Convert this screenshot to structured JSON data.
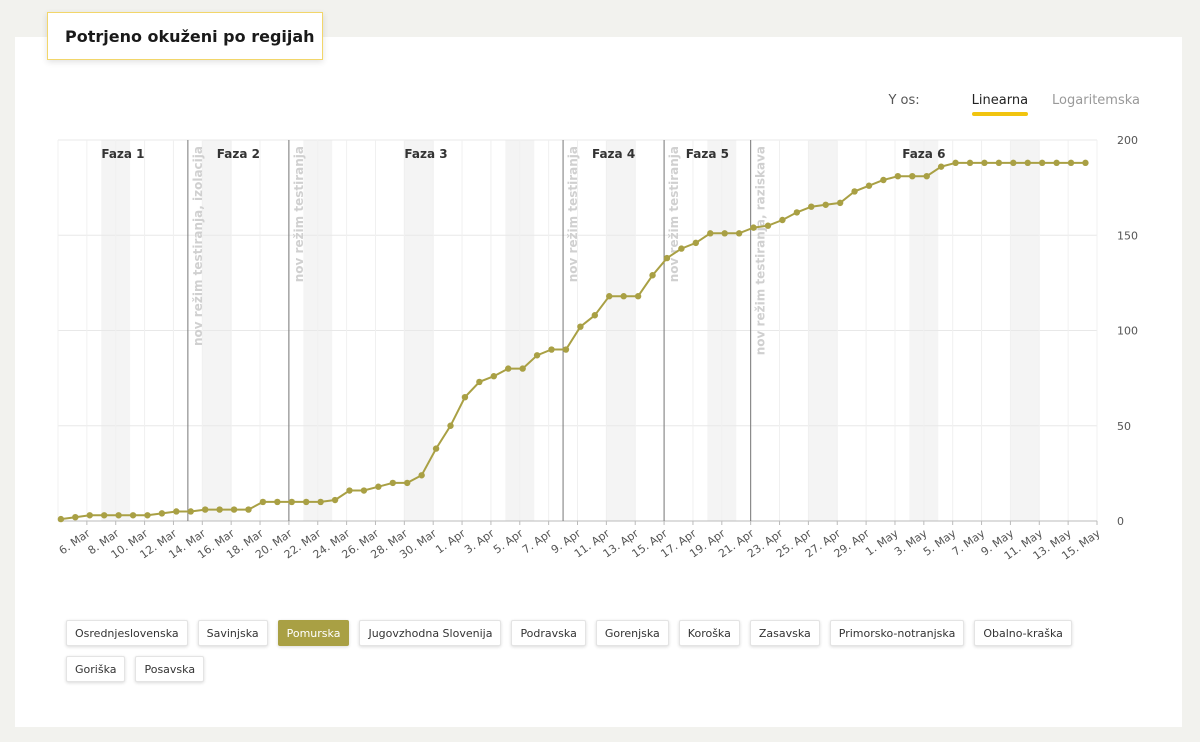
{
  "title": "Potrjeno okuženi po regijah",
  "y_axis_toggle": {
    "label": "Y os:",
    "options": [
      "Linearna",
      "Logaritemska"
    ],
    "selected": "Linearna"
  },
  "regions": [
    "Osrednjeslovenska",
    "Savinjska",
    "Pomurska",
    "Jugovzhodna Slovenija",
    "Podravska",
    "Gorenjska",
    "Koroška",
    "Zasavska",
    "Primorsko-notranjska",
    "Obalno-kraška",
    "Goriška",
    "Posavska"
  ],
  "selected_region": "Pomurska",
  "colors": {
    "line": "#a9a044",
    "accent": "#f1c40f",
    "phase_line": "#777777",
    "weekend": "#f4f4f4",
    "grid": "#e8e8e8"
  },
  "chart_data": {
    "type": "line",
    "x_start": "2020-03-04",
    "x_end": "2020-05-15",
    "ylim": [
      0,
      200
    ],
    "y_ticks": [
      0,
      50,
      100,
      150,
      200
    ],
    "x_tick_labels": [
      "6. Mar",
      "8. Mar",
      "10. Mar",
      "12. Mar",
      "14. Mar",
      "16. Mar",
      "18. Mar",
      "20. Mar",
      "22. Mar",
      "24. Mar",
      "26. Mar",
      "28. Mar",
      "30. Mar",
      "1. Apr",
      "3. Apr",
      "5. Apr",
      "7. Apr",
      "9. Apr",
      "11. Apr",
      "13. Apr",
      "15. Apr",
      "17. Apr",
      "19. Apr",
      "21. Apr",
      "23. Apr",
      "25. Apr",
      "27. Apr",
      "29. Apr",
      "1. May",
      "3. May",
      "5. May",
      "7. May",
      "9. May",
      "11. May",
      "13. May",
      "15. May"
    ],
    "series": [
      {
        "values": [
          1,
          2,
          3,
          3,
          3,
          3,
          3,
          4,
          5,
          5,
          6,
          6,
          6,
          6,
          10,
          10,
          10,
          10,
          10,
          11,
          16,
          16,
          18,
          20,
          20,
          24,
          38,
          50,
          65,
          73,
          76,
          80,
          80,
          87,
          90,
          90,
          102,
          108,
          118,
          118,
          118,
          129,
          138,
          143,
          146,
          151,
          151,
          151,
          154,
          155,
          158,
          162,
          165,
          166,
          167,
          173,
          176,
          179,
          181,
          181,
          181,
          186,
          188,
          188,
          188,
          188,
          188,
          188,
          188,
          188,
          188,
          188
        ]
      }
    ],
    "phases": [
      {
        "label": "Faza 1",
        "start": "2020-03-04",
        "end": "2020-03-13"
      },
      {
        "label": "Faza 2",
        "start": "2020-03-13",
        "end": "2020-03-20"
      },
      {
        "label": "Faza 3",
        "start": "2020-03-20",
        "end": "2020-04-08"
      },
      {
        "label": "Faza 4",
        "start": "2020-04-08",
        "end": "2020-04-15"
      },
      {
        "label": "Faza 5",
        "start": "2020-04-15",
        "end": "2020-04-21"
      },
      {
        "label": "Faza 6",
        "start": "2020-04-21",
        "end": "2020-05-15"
      }
    ],
    "annotations": [
      {
        "date": "2020-03-13",
        "text": "nov režim testiranja, izolacija"
      },
      {
        "date": "2020-03-20",
        "text": "nov režim testiranja"
      },
      {
        "date": "2020-04-08",
        "text": "nov režim testiranja"
      },
      {
        "date": "2020-04-15",
        "text": "nov režim testiranja"
      },
      {
        "date": "2020-04-21",
        "text": "nov režim testiranja, raziskava"
      }
    ]
  }
}
